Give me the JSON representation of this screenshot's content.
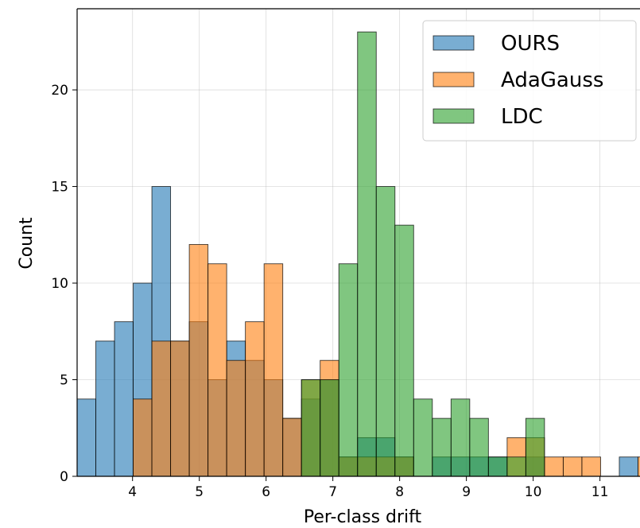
{
  "chart_data": {
    "type": "histogram",
    "title": "",
    "xlabel": "Per-class drift",
    "ylabel": "Count",
    "xlim": [
      3.17,
      11.6
    ],
    "ylim": [
      0,
      24.2
    ],
    "xticks": [
      4,
      5,
      6,
      7,
      8,
      9,
      10,
      11
    ],
    "yticks": [
      0,
      5,
      10,
      15,
      20
    ],
    "bin_start": 3.17,
    "bin_width": 0.28,
    "grid": true,
    "legend_position": "upper right",
    "bar_opacity": 0.6,
    "series": [
      {
        "name": "OURS",
        "color": "#1f77b4",
        "counts": [
          4,
          7,
          8,
          10,
          15,
          7,
          8,
          5,
          7,
          6,
          5,
          3,
          4,
          5,
          1,
          2,
          2,
          1,
          0,
          1,
          1,
          1,
          1,
          0,
          1,
          0,
          0,
          0,
          0,
          1,
          0,
          1
        ]
      },
      {
        "name": "AdaGauss",
        "color": "#ff7f0e",
        "counts": [
          0,
          0,
          0,
          4,
          7,
          7,
          12,
          11,
          6,
          8,
          11,
          3,
          5,
          6,
          1,
          1,
          1,
          1,
          0,
          0,
          0,
          0,
          0,
          2,
          2,
          1,
          1,
          1,
          0,
          0,
          1,
          1
        ]
      },
      {
        "name": "LDC",
        "color": "#2ca02c",
        "counts": [
          0,
          0,
          0,
          0,
          0,
          0,
          0,
          0,
          0,
          0,
          0,
          0,
          5,
          5,
          11,
          23,
          15,
          13,
          4,
          3,
          4,
          3,
          1,
          1,
          3,
          0,
          0,
          0,
          0,
          0,
          0,
          0
        ]
      }
    ]
  }
}
